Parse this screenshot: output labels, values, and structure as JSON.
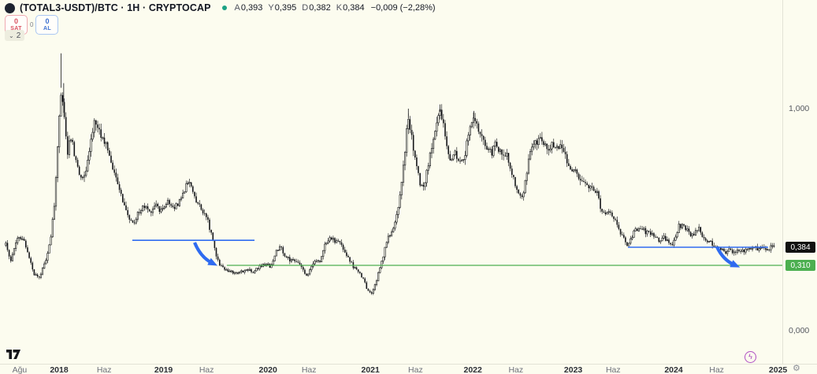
{
  "header": {
    "symbol_title": "(TOTAL3-USDT)/BTC · 1H · CRYPTOCAP",
    "ohlc": [
      {
        "label": "A",
        "value": "0,393"
      },
      {
        "label": "Y",
        "value": "0,395"
      },
      {
        "label": "D",
        "value": "0,382"
      },
      {
        "label": "K",
        "value": "0,384"
      }
    ],
    "change": "−0,009 (−2,28%)",
    "market_status_color": "#1ca284"
  },
  "trade_buttons": {
    "sell_qty": "0",
    "sell_label": "SAT",
    "spread": "0",
    "buy_qty": "0",
    "buy_label": "AL"
  },
  "object_tree_badge": {
    "chevron": "⌄",
    "count": "2"
  },
  "price_axis": {
    "ticks": [
      {
        "label": "1,000",
        "price": 1.0
      },
      {
        "label": "0,000",
        "price": 0.0
      }
    ],
    "last_price_label": "0,384",
    "last_price": 0.384,
    "level_label": "0,310",
    "level_price": 0.31
  },
  "time_axis": {
    "labels": [
      {
        "label": "Ağu",
        "t": 2017.615,
        "bold": false
      },
      {
        "label": "2018",
        "t": 2018.0,
        "bold": true
      },
      {
        "label": "Haz",
        "t": 2018.44,
        "bold": false
      },
      {
        "label": "2019",
        "t": 2019.02,
        "bold": true
      },
      {
        "label": "Haz",
        "t": 2019.44,
        "bold": false
      },
      {
        "label": "2020",
        "t": 2020.04,
        "bold": true
      },
      {
        "label": "Haz",
        "t": 2020.44,
        "bold": false
      },
      {
        "label": "2021",
        "t": 2021.04,
        "bold": true
      },
      {
        "label": "Haz",
        "t": 2021.48,
        "bold": false
      },
      {
        "label": "2022",
        "t": 2022.04,
        "bold": true
      },
      {
        "label": "Haz",
        "t": 2022.46,
        "bold": false
      },
      {
        "label": "2023",
        "t": 2023.02,
        "bold": true
      },
      {
        "label": "Haz",
        "t": 2023.41,
        "bold": false
      },
      {
        "label": "2024",
        "t": 2024.0,
        "bold": true
      },
      {
        "label": "Haz",
        "t": 2024.42,
        "bold": false
      },
      {
        "label": "2025",
        "t": 2025.02,
        "bold": true
      }
    ]
  },
  "footer": {
    "boost_glyph": "ϟ",
    "settings_glyph": "⚙"
  },
  "colors": {
    "background": "#fcfcef",
    "candle": "#15161a",
    "blue": "#2f6bf0",
    "green": "#4caf50",
    "black_tag": "#111111",
    "red": "#d9505f"
  },
  "chart_data": {
    "type": "candlestick",
    "symbol": "(TOTAL3-USDT)/BTC",
    "interval": "1H",
    "source": "CRYPTOCAP",
    "current_ohlc": {
      "open": 0.393,
      "high": 0.395,
      "low": 0.382,
      "close": 0.384,
      "change": -0.009,
      "change_pct": -2.28
    },
    "ylim": [
      0.0,
      1.3
    ],
    "xlim_years": [
      2017.48,
      2025.06
    ],
    "grid": false,
    "price_path": [
      [
        2017.48,
        0.398
      ],
      [
        2017.53,
        0.333
      ],
      [
        2017.58,
        0.415
      ],
      [
        2017.64,
        0.433
      ],
      [
        2017.69,
        0.371
      ],
      [
        2017.76,
        0.266
      ],
      [
        2017.81,
        0.254
      ],
      [
        2017.87,
        0.333
      ],
      [
        2017.92,
        0.433
      ],
      [
        2017.96,
        0.608
      ],
      [
        2017.99,
        0.853
      ],
      [
        2018.02,
        1.098
      ],
      [
        2018.05,
        0.958
      ],
      [
        2018.08,
        0.783
      ],
      [
        2018.11,
        0.888
      ],
      [
        2018.14,
        0.818
      ],
      [
        2018.18,
        0.731
      ],
      [
        2018.22,
        0.678
      ],
      [
        2018.26,
        0.731
      ],
      [
        2018.3,
        0.801
      ],
      [
        2018.33,
        0.923
      ],
      [
        2018.37,
        0.941
      ],
      [
        2018.41,
        0.871
      ],
      [
        2018.46,
        0.853
      ],
      [
        2018.5,
        0.783
      ],
      [
        2018.56,
        0.678
      ],
      [
        2018.61,
        0.608
      ],
      [
        2018.66,
        0.538
      ],
      [
        2018.72,
        0.486
      ],
      [
        2018.78,
        0.538
      ],
      [
        2018.83,
        0.566
      ],
      [
        2018.88,
        0.538
      ],
      [
        2018.94,
        0.566
      ],
      [
        2019.0,
        0.545
      ],
      [
        2019.06,
        0.587
      ],
      [
        2019.12,
        0.556
      ],
      [
        2019.18,
        0.594
      ],
      [
        2019.24,
        0.661
      ],
      [
        2019.28,
        0.671
      ],
      [
        2019.33,
        0.601
      ],
      [
        2019.39,
        0.556
      ],
      [
        2019.45,
        0.503
      ],
      [
        2019.49,
        0.433
      ],
      [
        2019.54,
        0.333
      ],
      [
        2019.6,
        0.299
      ],
      [
        2019.66,
        0.28
      ],
      [
        2019.72,
        0.269
      ],
      [
        2019.78,
        0.28
      ],
      [
        2019.83,
        0.291
      ],
      [
        2019.89,
        0.28
      ],
      [
        2019.95,
        0.299
      ],
      [
        2020.0,
        0.316
      ],
      [
        2020.06,
        0.306
      ],
      [
        2020.11,
        0.358
      ],
      [
        2020.16,
        0.381
      ],
      [
        2020.21,
        0.349
      ],
      [
        2020.26,
        0.333
      ],
      [
        2020.31,
        0.326
      ],
      [
        2020.37,
        0.306
      ],
      [
        2020.42,
        0.254
      ],
      [
        2020.46,
        0.299
      ],
      [
        2020.5,
        0.333
      ],
      [
        2020.55,
        0.326
      ],
      [
        2020.6,
        0.398
      ],
      [
        2020.64,
        0.433
      ],
      [
        2020.69,
        0.415
      ],
      [
        2020.73,
        0.405
      ],
      [
        2020.78,
        0.371
      ],
      [
        2020.83,
        0.333
      ],
      [
        2020.87,
        0.306
      ],
      [
        2020.92,
        0.28
      ],
      [
        2020.97,
        0.243
      ],
      [
        2021.01,
        0.194
      ],
      [
        2021.05,
        0.179
      ],
      [
        2021.09,
        0.224
      ],
      [
        2021.13,
        0.299
      ],
      [
        2021.18,
        0.371
      ],
      [
        2021.22,
        0.433
      ],
      [
        2021.27,
        0.486
      ],
      [
        2021.32,
        0.591
      ],
      [
        2021.36,
        0.748
      ],
      [
        2021.41,
        0.958
      ],
      [
        2021.44,
        0.871
      ],
      [
        2021.48,
        0.766
      ],
      [
        2021.52,
        0.678
      ],
      [
        2021.55,
        0.643
      ],
      [
        2021.59,
        0.713
      ],
      [
        2021.64,
        0.836
      ],
      [
        2021.68,
        0.923
      ],
      [
        2021.72,
        0.986
      ],
      [
        2021.75,
        0.958
      ],
      [
        2021.79,
        0.818
      ],
      [
        2021.83,
        0.766
      ],
      [
        2021.87,
        0.801
      ],
      [
        2021.91,
        0.748
      ],
      [
        2021.95,
        0.783
      ],
      [
        2021.98,
        0.836
      ],
      [
        2022.02,
        0.941
      ],
      [
        2022.06,
        0.965
      ],
      [
        2022.1,
        0.906
      ],
      [
        2022.14,
        0.853
      ],
      [
        2022.18,
        0.818
      ],
      [
        2022.22,
        0.801
      ],
      [
        2022.26,
        0.836
      ],
      [
        2022.3,
        0.818
      ],
      [
        2022.34,
        0.801
      ],
      [
        2022.38,
        0.783
      ],
      [
        2022.42,
        0.713
      ],
      [
        2022.45,
        0.661
      ],
      [
        2022.48,
        0.626
      ],
      [
        2022.52,
        0.598
      ],
      [
        2022.56,
        0.7
      ],
      [
        2022.6,
        0.801
      ],
      [
        2022.64,
        0.836
      ],
      [
        2022.68,
        0.853
      ],
      [
        2022.72,
        0.86
      ],
      [
        2022.76,
        0.836
      ],
      [
        2022.79,
        0.818
      ],
      [
        2022.83,
        0.846
      ],
      [
        2022.87,
        0.836
      ],
      [
        2022.91,
        0.811
      ],
      [
        2022.95,
        0.783
      ],
      [
        2022.99,
        0.748
      ],
      [
        2023.02,
        0.731
      ],
      [
        2023.06,
        0.7
      ],
      [
        2023.1,
        0.685
      ],
      [
        2023.14,
        0.661
      ],
      [
        2023.18,
        0.643
      ],
      [
        2023.21,
        0.65
      ],
      [
        2023.25,
        0.626
      ],
      [
        2023.29,
        0.556
      ],
      [
        2023.32,
        0.531
      ],
      [
        2023.36,
        0.538
      ],
      [
        2023.4,
        0.521
      ],
      [
        2023.44,
        0.503
      ],
      [
        2023.48,
        0.45
      ],
      [
        2023.52,
        0.415
      ],
      [
        2023.55,
        0.391
      ],
      [
        2023.59,
        0.433
      ],
      [
        2023.63,
        0.461
      ],
      [
        2023.67,
        0.468
      ],
      [
        2023.71,
        0.457
      ],
      [
        2023.75,
        0.45
      ],
      [
        2023.78,
        0.44
      ],
      [
        2023.82,
        0.426
      ],
      [
        2023.86,
        0.415
      ],
      [
        2023.9,
        0.433
      ],
      [
        2023.94,
        0.415
      ],
      [
        2023.98,
        0.398
      ],
      [
        2024.02,
        0.433
      ],
      [
        2024.05,
        0.475
      ],
      [
        2024.09,
        0.486
      ],
      [
        2024.13,
        0.461
      ],
      [
        2024.17,
        0.44
      ],
      [
        2024.21,
        0.45
      ],
      [
        2024.25,
        0.468
      ],
      [
        2024.28,
        0.433
      ],
      [
        2024.32,
        0.415
      ],
      [
        2024.36,
        0.405
      ],
      [
        2024.4,
        0.391
      ],
      [
        2024.44,
        0.381
      ],
      [
        2024.48,
        0.371
      ],
      [
        2024.52,
        0.365
      ],
      [
        2024.55,
        0.371
      ],
      [
        2024.59,
        0.365
      ],
      [
        2024.63,
        0.374
      ],
      [
        2024.67,
        0.365
      ],
      [
        2024.71,
        0.371
      ],
      [
        2024.75,
        0.378
      ],
      [
        2024.78,
        0.381
      ],
      [
        2024.82,
        0.378
      ],
      [
        2024.86,
        0.381
      ],
      [
        2024.9,
        0.378
      ],
      [
        2024.94,
        0.381
      ],
      [
        2024.98,
        0.384
      ]
    ],
    "spikes": [
      {
        "t": 2018.02,
        "high": 1.26
      },
      {
        "t": 2018.045,
        "high": 1.12
      },
      {
        "t": 2021.41,
        "high": 1.0
      },
      {
        "t": 2021.72,
        "high": 1.02
      },
      {
        "t": 2022.05,
        "high": 0.99
      }
    ],
    "drawings": {
      "support_ray_green": {
        "price": 0.31,
        "t_start": 2019.638,
        "t_end": 2025.06
      },
      "trendlines_blue": [
        {
          "price": 0.415,
          "t_start": 2018.715,
          "t_end": 2019.908
        },
        {
          "price": 0.384,
          "t_start": 2023.554,
          "t_end": 2024.923
        }
      ],
      "arrows_blue": [
        {
          "from": {
            "t": 2019.323,
            "p": 0.405
          },
          "to": {
            "t": 2019.492,
            "p": 0.32
          }
        },
        {
          "from": {
            "t": 2024.423,
            "p": 0.386
          },
          "to": {
            "t": 2024.592,
            "p": 0.312
          }
        }
      ]
    }
  }
}
